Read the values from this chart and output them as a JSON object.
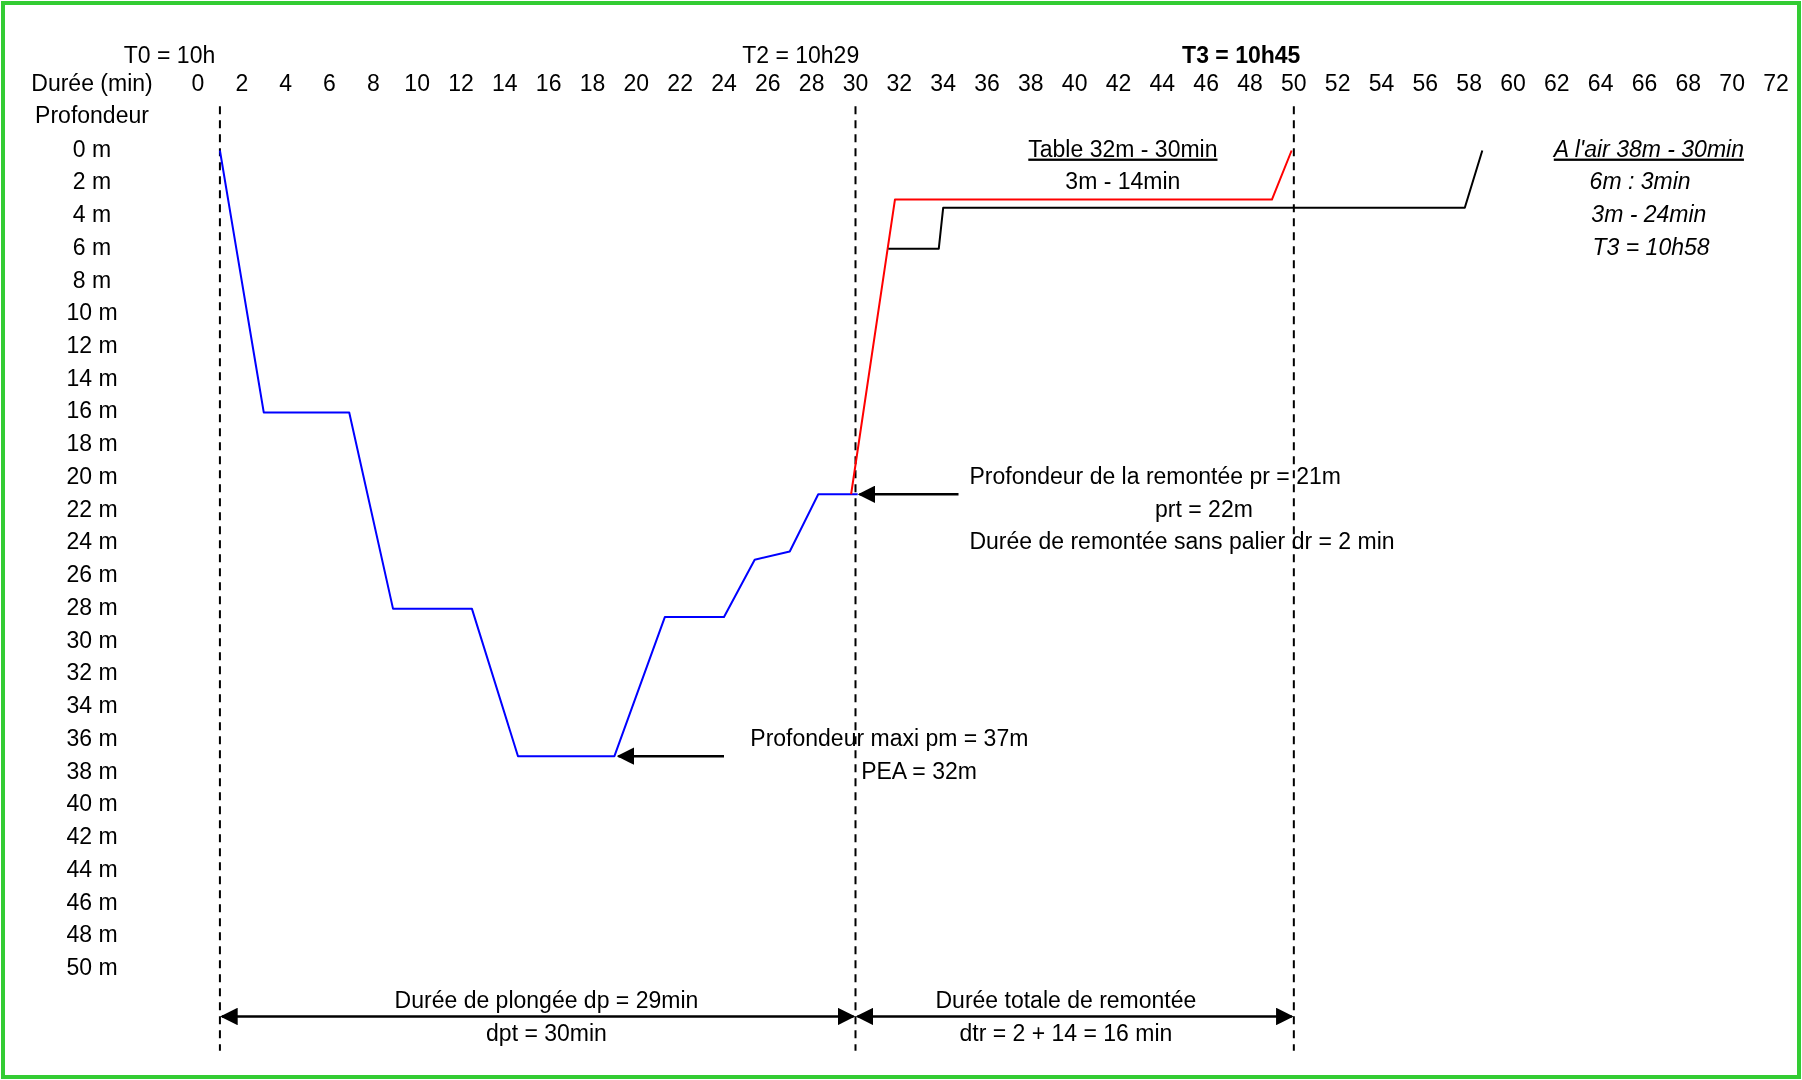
{
  "chart_data": {
    "type": "line",
    "xlabel": "Durée (min)",
    "ylabel": "Profondeur",
    "xlim": [
      0,
      72
    ],
    "ylim": [
      50,
      0
    ],
    "xticks": [
      0,
      2,
      4,
      6,
      8,
      10,
      12,
      14,
      16,
      18,
      20,
      22,
      24,
      26,
      28,
      30,
      32,
      34,
      36,
      38,
      40,
      42,
      44,
      46,
      48,
      50,
      52,
      54,
      56,
      58,
      60,
      62,
      64,
      66,
      68,
      70,
      72
    ],
    "yticks": [
      {
        "value": 0,
        "label": "0 m"
      },
      {
        "value": 2,
        "label": "2 m"
      },
      {
        "value": 4,
        "label": "4 m"
      },
      {
        "value": 6,
        "label": "6 m"
      },
      {
        "value": 8,
        "label": "8 m"
      },
      {
        "value": 10,
        "label": "10 m"
      },
      {
        "value": 12,
        "label": "12 m"
      },
      {
        "value": 14,
        "label": "14 m"
      },
      {
        "value": 16,
        "label": "16 m"
      },
      {
        "value": 18,
        "label": "18 m"
      },
      {
        "value": 20,
        "label": "20 m"
      },
      {
        "value": 22,
        "label": "22 m"
      },
      {
        "value": 24,
        "label": "24 m"
      },
      {
        "value": 26,
        "label": "26 m"
      },
      {
        "value": 28,
        "label": "28 m"
      },
      {
        "value": 30,
        "label": "30 m"
      },
      {
        "value": 32,
        "label": "32 m"
      },
      {
        "value": 34,
        "label": "34 m"
      },
      {
        "value": 36,
        "label": "36 m"
      },
      {
        "value": 38,
        "label": "38 m"
      },
      {
        "value": 40,
        "label": "40 m"
      },
      {
        "value": 42,
        "label": "42 m"
      },
      {
        "value": 44,
        "label": "44 m"
      },
      {
        "value": 46,
        "label": "46 m"
      },
      {
        "value": 48,
        "label": "48 m"
      },
      {
        "value": 50,
        "label": "50 m"
      }
    ],
    "grid": false,
    "marker": "none",
    "line_style": "solid",
    "series": [
      {
        "color": "#0000ff",
        "x": [
          1,
          3,
          6.9,
          8.9,
          12.5,
          14.6,
          19,
          21.3,
          24,
          25.4,
          27,
          28.3,
          30.1
        ],
        "values": [
          0,
          16,
          16,
          28,
          28,
          37,
          37,
          28.5,
          28.5,
          25,
          24.5,
          21,
          21
        ]
      },
      {
        "color": "#ff0000",
        "x": [
          29.8,
          31.8,
          49,
          49.9
        ],
        "values": [
          21,
          3,
          3,
          0
        ]
      },
      {
        "color": "#000000",
        "x": [
          31.5,
          33.8,
          34,
          57.8,
          58.6
        ],
        "values": [
          6,
          6,
          3.5,
          3.5,
          0
        ]
      }
    ],
    "ref_lines": [
      {
        "axis": "x",
        "value": 1,
        "line_style": "dashed"
      },
      {
        "axis": "x",
        "value": 30,
        "line_style": "dashed"
      },
      {
        "axis": "x",
        "value": 50,
        "line_style": "dashed"
      }
    ],
    "annotations": [
      "T0 = 10h",
      "T2 = 10h29",
      "T3 = 10h45",
      {
        "text": "Profondeur maxi pm = 37m",
        "x": 19,
        "y": 37
      },
      "PEA = 32m",
      {
        "text": "Profondeur de la remontée pr = 21m",
        "x": 30,
        "y": 21
      },
      "prt = 22m",
      "Durée de remontée sans palier dr = 2 min",
      "Table 32m - 30min",
      "3m - 14min",
      "A l'air 38m - 30min",
      "6m : 3min",
      "3m - 24min",
      "T3 = 10h58",
      "Durée de plongée  dp = 29min",
      "dpt = 30min",
      "Durée totale de remontée",
      "dtr = 2 + 14 = 16 min"
    ]
  }
}
